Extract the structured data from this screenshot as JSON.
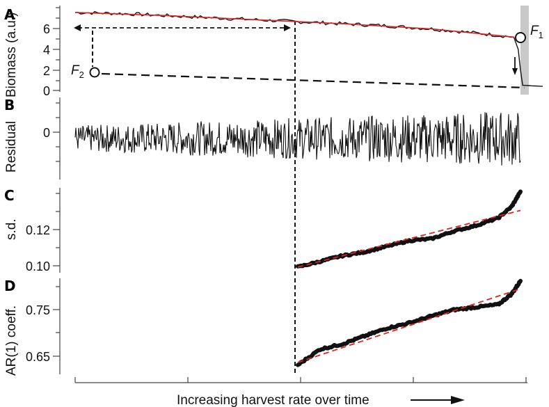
{
  "figure": {
    "xlabel": "Increasing harvest rate over time",
    "transition_label_italic": "F",
    "transition_1_sub": "1",
    "transition_2_sub": "2"
  },
  "chart_data": [
    {
      "panel": "A",
      "type": "line",
      "ylabel": "Biomass (a.u.)",
      "yticks": [
        "0",
        "2",
        "4",
        "6"
      ],
      "ylim": [
        0,
        8
      ],
      "series": [
        {
          "color": "#111111",
          "points": [
            [
              0,
              7.6
            ],
            [
              0.1,
              7.5
            ],
            [
              0.2,
              7.3
            ],
            [
              0.3,
              7.1
            ],
            [
              0.4,
              6.9
            ],
            [
              0.5,
              6.7
            ],
            [
              0.6,
              6.5
            ],
            [
              0.7,
              6.3
            ],
            [
              0.8,
              6.0
            ],
            [
              0.9,
              5.6
            ],
            [
              0.985,
              5.2
            ],
            [
              0.995,
              4.0
            ],
            [
              1.0,
              2.0
            ],
            [
              1.005,
              0.5
            ],
            [
              1.05,
              0.4
            ]
          ]
        },
        {
          "color": "#dd2222",
          "points": [
            [
              0,
              7.6
            ],
            [
              0.2,
              7.3
            ],
            [
              0.4,
              6.9
            ],
            [
              0.6,
              6.5
            ],
            [
              0.8,
              6.0
            ],
            [
              0.985,
              5.2
            ]
          ]
        }
      ],
      "annotations": {
        "F1": {
          "x": 1.0,
          "y": 5.2
        },
        "F2": {
          "x": 0.04,
          "y": 1.7
        },
        "threshold_x": 0.5
      }
    },
    {
      "panel": "B",
      "type": "line",
      "ylabel": "Residual",
      "yticks": [
        "0"
      ],
      "ylim": [
        -1,
        1
      ],
      "series": [
        {
          "color": "#111111",
          "description_only": false
        }
      ]
    },
    {
      "panel": "C",
      "type": "scatter",
      "ylabel": "s.d.",
      "yticks": [
        "0.10",
        "0.12"
      ],
      "ylim": [
        0.095,
        0.14
      ],
      "series": [
        {
          "color": "#111111",
          "points": [
            [
              0.5,
              0.098
            ],
            [
              0.55,
              0.101
            ],
            [
              0.6,
              0.104
            ],
            [
              0.65,
              0.106
            ],
            [
              0.7,
              0.109
            ],
            [
              0.75,
              0.112
            ],
            [
              0.8,
              0.113
            ],
            [
              0.85,
              0.117
            ],
            [
              0.9,
              0.12
            ],
            [
              0.95,
              0.124
            ],
            [
              0.98,
              0.13
            ],
            [
              1.0,
              0.138
            ]
          ]
        },
        {
          "color": "#dd2222",
          "trend": [
            [
              0.5,
              0.098
            ],
            [
              1.0,
              0.128
            ]
          ]
        }
      ]
    },
    {
      "panel": "D",
      "type": "scatter",
      "ylabel": "AR(1) coeff.",
      "yticks": [
        "0.65",
        "0.75"
      ],
      "ylim": [
        0.61,
        0.79
      ],
      "series": [
        {
          "color": "#111111",
          "points": [
            [
              0.5,
              0.625
            ],
            [
              0.55,
              0.655
            ],
            [
              0.6,
              0.665
            ],
            [
              0.65,
              0.68
            ],
            [
              0.7,
              0.695
            ],
            [
              0.75,
              0.705
            ],
            [
              0.8,
              0.718
            ],
            [
              0.85,
              0.73
            ],
            [
              0.9,
              0.735
            ],
            [
              0.95,
              0.74
            ],
            [
              0.98,
              0.76
            ],
            [
              1.0,
              0.785
            ]
          ]
        },
        {
          "color": "#dd2222",
          "trend": [
            [
              0.5,
              0.63
            ],
            [
              1.0,
              0.77
            ]
          ]
        }
      ]
    }
  ]
}
